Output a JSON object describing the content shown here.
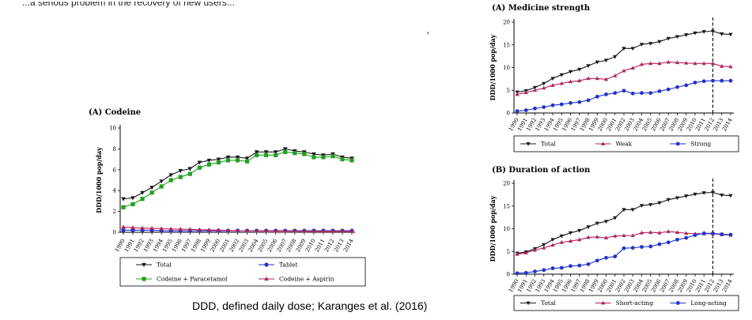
{
  "top_fragment": "...a serious problem in the recovery of new users...",
  "stray_mark": "'",
  "caption": "DDD, defined daily dose; Karanges et al. (2016)",
  "colors": {
    "total": "#1a1a1a",
    "paracetamol": "#22a020",
    "tablet": "#2233cc",
    "aspirin": "#b0245e",
    "weak": "#b0245e",
    "strong": "#2233cc",
    "short": "#b0245e",
    "long": "#2233cc"
  },
  "chart_data": [
    {
      "id": "codeine",
      "type": "line",
      "title": "(A) Codeine",
      "ylabel": "DDD/1000 pop/day",
      "ylim": [
        0,
        10
      ],
      "yticks": [
        0,
        2,
        4,
        6,
        8,
        10
      ],
      "x": [
        "1990",
        "1991",
        "1992",
        "1993",
        "1994",
        "1995",
        "1996",
        "1997",
        "1998",
        "1999",
        "2000",
        "2001",
        "2002",
        "2003",
        "2004",
        "2005",
        "2006",
        "2007",
        "2008",
        "2009",
        "2010",
        "2011",
        "2012",
        "2013",
        "2014"
      ],
      "legend_position": "bottom",
      "series": [
        {
          "name": "Total",
          "color_key": "total",
          "marker": "triangle-down",
          "values": [
            3.2,
            3.3,
            3.8,
            4.3,
            4.9,
            5.5,
            5.9,
            6.1,
            6.7,
            6.9,
            7.0,
            7.2,
            7.2,
            7.1,
            7.7,
            7.7,
            7.7,
            8.0,
            7.8,
            7.7,
            7.5,
            7.4,
            7.5,
            7.2,
            7.1
          ]
        },
        {
          "name": "Codeine + Paracetamol",
          "color_key": "paracetamol",
          "marker": "square",
          "values": [
            2.4,
            2.7,
            3.2,
            3.8,
            4.4,
            5.0,
            5.3,
            5.6,
            6.2,
            6.5,
            6.7,
            6.9,
            6.9,
            6.8,
            7.4,
            7.4,
            7.4,
            7.7,
            7.6,
            7.5,
            7.2,
            7.2,
            7.3,
            7.0,
            6.9
          ]
        },
        {
          "name": "Tablet",
          "color_key": "tablet",
          "marker": "circle",
          "values": [
            0.2,
            0.2,
            0.2,
            0.2,
            0.15,
            0.15,
            0.15,
            0.15,
            0.15,
            0.15,
            0.15,
            0.15,
            0.15,
            0.15,
            0.15,
            0.15,
            0.15,
            0.15,
            0.15,
            0.15,
            0.15,
            0.15,
            0.15,
            0.15,
            0.15
          ]
        },
        {
          "name": "Codeine + Aspirin",
          "color_key": "aspirin",
          "marker": "triangle-up",
          "values": [
            0.5,
            0.45,
            0.4,
            0.38,
            0.35,
            0.32,
            0.3,
            0.28,
            0.25,
            0.22,
            0.2,
            0.18,
            0.16,
            0.15,
            0.14,
            0.13,
            0.12,
            0.12,
            0.11,
            0.11,
            0.1,
            0.1,
            0.1,
            0.1,
            0.1
          ]
        }
      ],
      "vline": null
    },
    {
      "id": "strength",
      "type": "line",
      "title": "(A) Medicine strength",
      "ylabel": "DDD/1000 pop/day",
      "ylim": [
        0,
        20
      ],
      "yticks": [
        0,
        5,
        10,
        15,
        20
      ],
      "x": [
        "1990",
        "1991",
        "1992",
        "1993",
        "1994",
        "1995",
        "1996",
        "1997",
        "1998",
        "1999",
        "2000",
        "2001",
        "2002",
        "2003",
        "2004",
        "2005",
        "2006",
        "2007",
        "2008",
        "2009",
        "2010",
        "2011",
        "2012",
        "2013",
        "2014"
      ],
      "legend_position": "bottom",
      "series": [
        {
          "name": "Total",
          "color_key": "total",
          "marker": "triangle-down",
          "values": [
            4.6,
            4.9,
            5.6,
            6.5,
            7.6,
            8.4,
            9.1,
            9.6,
            10.4,
            11.2,
            11.6,
            12.4,
            14.2,
            14.2,
            15.1,
            15.3,
            15.7,
            16.4,
            16.8,
            17.2,
            17.6,
            17.9,
            18.0,
            17.4,
            17.3
          ]
        },
        {
          "name": "Weak",
          "color_key": "weak",
          "marker": "triangle-up",
          "values": [
            4.1,
            4.5,
            5.0,
            5.5,
            6.1,
            6.5,
            6.9,
            7.1,
            7.6,
            7.6,
            7.4,
            8.2,
            9.3,
            9.9,
            10.7,
            10.9,
            10.9,
            11.2,
            11.1,
            11.0,
            10.9,
            10.9,
            10.9,
            10.3,
            10.2
          ]
        },
        {
          "name": "Strong",
          "color_key": "strong",
          "marker": "circle",
          "values": [
            0.4,
            0.6,
            1.0,
            1.3,
            1.7,
            1.9,
            2.2,
            2.4,
            2.8,
            3.6,
            4.1,
            4.4,
            4.9,
            4.3,
            4.4,
            4.4,
            4.8,
            5.2,
            5.7,
            6.1,
            6.7,
            7.0,
            7.1,
            7.1,
            7.1
          ]
        }
      ],
      "vline": "2012"
    },
    {
      "id": "duration",
      "type": "line",
      "title": "(B) Duration of action",
      "ylabel": "DDD/1000 pop/day",
      "ylim": [
        0,
        20
      ],
      "yticks": [
        0,
        5,
        10,
        15,
        20
      ],
      "x": [
        "1990",
        "1991",
        "1992",
        "1993",
        "1994",
        "1995",
        "1996",
        "1997",
        "1998",
        "1999",
        "2000",
        "2001",
        "2002",
        "2003",
        "2004",
        "2005",
        "2006",
        "2007",
        "2008",
        "2009",
        "2010",
        "2011",
        "2012",
        "2013",
        "2014"
      ],
      "legend_position": "bottom",
      "series": [
        {
          "name": "Total",
          "color_key": "total",
          "marker": "triangle-down",
          "values": [
            4.6,
            4.9,
            5.6,
            6.5,
            7.6,
            8.4,
            9.1,
            9.6,
            10.4,
            11.2,
            11.6,
            12.4,
            14.2,
            14.2,
            15.1,
            15.3,
            15.7,
            16.4,
            16.8,
            17.2,
            17.6,
            17.9,
            18.0,
            17.4,
            17.3
          ]
        },
        {
          "name": "Short-acting",
          "color_key": "short",
          "marker": "triangle-up",
          "values": [
            4.4,
            4.7,
            5.3,
            5.8,
            6.4,
            7.0,
            7.3,
            7.6,
            8.1,
            8.2,
            8.0,
            8.4,
            8.5,
            8.5,
            9.1,
            9.2,
            9.1,
            9.4,
            9.2,
            9.0,
            8.9,
            8.9,
            8.9,
            8.7,
            8.6
          ]
        },
        {
          "name": "Long-acting",
          "color_key": "long",
          "marker": "circle",
          "values": [
            0.2,
            0.3,
            0.6,
            0.9,
            1.3,
            1.4,
            1.8,
            1.9,
            2.2,
            3.0,
            3.6,
            3.9,
            5.7,
            5.8,
            6.0,
            6.1,
            6.6,
            7.0,
            7.6,
            8.0,
            8.6,
            9.0,
            9.0,
            8.8,
            8.7
          ]
        }
      ],
      "vline": "2012"
    }
  ]
}
